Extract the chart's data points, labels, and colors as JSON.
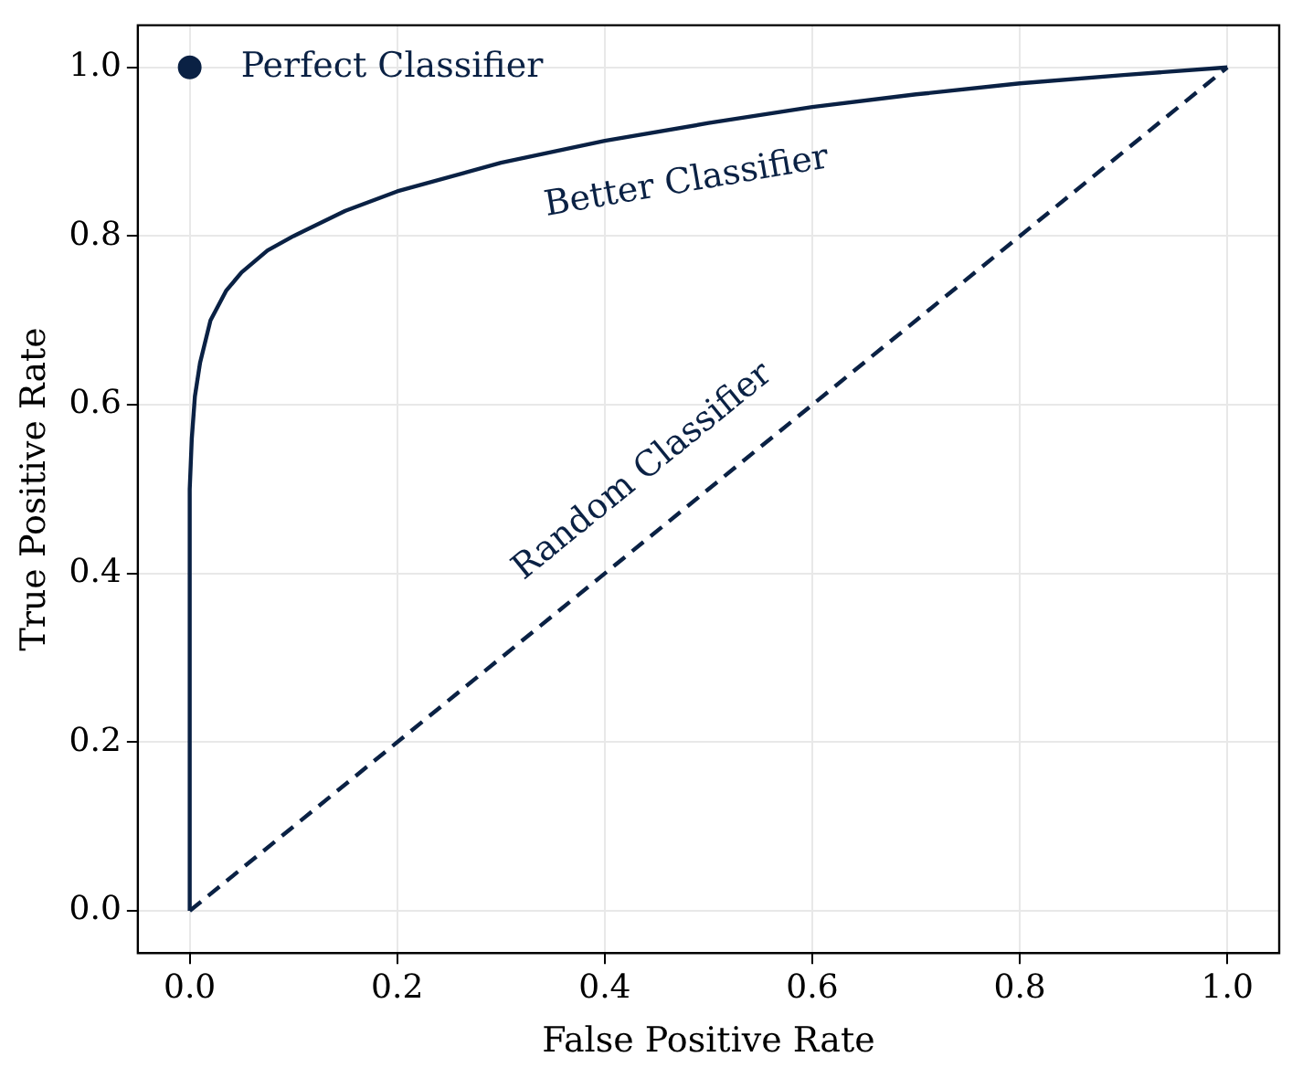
{
  "chart_data": {
    "type": "line",
    "xlabel": "False Positive Rate",
    "ylabel": "True Positive Rate",
    "xlim": [
      -0.05,
      1.05
    ],
    "ylim": [
      -0.05,
      1.05
    ],
    "xticks": [
      {
        "value": 0,
        "label": "0.0"
      },
      {
        "value": 0.2,
        "label": "0.2"
      },
      {
        "value": 0.4,
        "label": "0.4"
      },
      {
        "value": 0.6,
        "label": "0.6"
      },
      {
        "value": 0.8,
        "label": "0.8"
      },
      {
        "value": 1,
        "label": "1.0"
      }
    ],
    "yticks": [
      {
        "value": 0,
        "label": "0.0"
      },
      {
        "value": 0.2,
        "label": "0.2"
      },
      {
        "value": 0.4,
        "label": "0.4"
      },
      {
        "value": 0.6,
        "label": "0.6"
      },
      {
        "value": 0.8,
        "label": "0.8"
      },
      {
        "value": 1,
        "label": "1.0"
      }
    ],
    "grid": true,
    "legend": false,
    "series": [
      {
        "name": "Better Classifier",
        "color": "#0a2144",
        "line_style": "solid",
        "marker": "none",
        "x": [
          0,
          0,
          0.002,
          0.005,
          0.01,
          0.02,
          0.035,
          0.05,
          0.075,
          0.1,
          0.15,
          0.2,
          0.3,
          0.4,
          0.5,
          0.6,
          0.7,
          0.8,
          0.9,
          1
        ],
        "values": [
          0,
          0.5,
          0.56,
          0.61,
          0.65,
          0.7,
          0.735,
          0.757,
          0.783,
          0.8,
          0.83,
          0.853,
          0.887,
          0.913,
          0.934,
          0.953,
          0.968,
          0.981,
          0.991,
          1
        ]
      },
      {
        "name": "Random Classifier",
        "color": "#0a2144",
        "line_style": "dashed",
        "marker": "none",
        "x": [
          0,
          1
        ],
        "values": [
          0,
          1
        ]
      },
      {
        "name": "Perfect Classifier",
        "type": "scatter",
        "color": "#0a2144",
        "marker": "circle",
        "x": [
          0
        ],
        "values": [
          1
        ]
      }
    ]
  }
}
